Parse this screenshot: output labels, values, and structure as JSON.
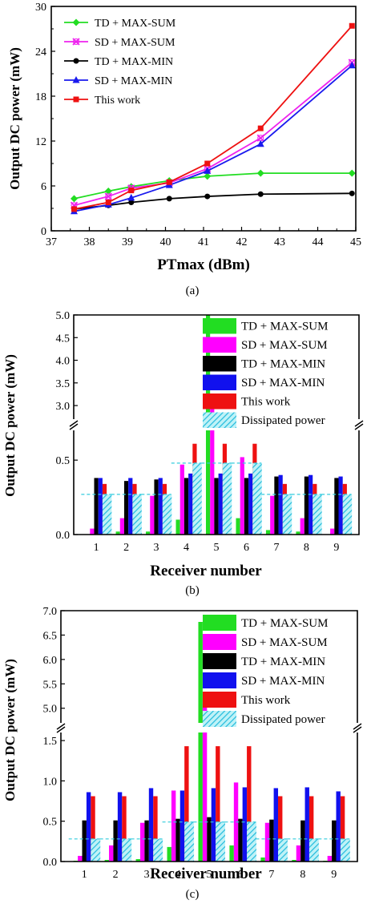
{
  "chart_data": [
    {
      "type": "line",
      "caption": "(a)",
      "xlabel": "PTmax (dBm)",
      "ylabel": "Output DC power (mW)",
      "xlim": [
        37,
        45
      ],
      "ylim": [
        0,
        30
      ],
      "xticks": [
        "37",
        "38",
        "39",
        "40",
        "41",
        "42",
        "43",
        "44",
        "45"
      ],
      "yticks": [
        "0",
        "6",
        "12",
        "18",
        "24",
        "30"
      ],
      "legend_position": "top-left",
      "series": [
        {
          "name": "TD + MAX-SUM",
          "color": "#22dd22",
          "marker": "diamond",
          "x": [
            37.6,
            38.5,
            39.1,
            40.1,
            41.1,
            42.5,
            44.9
          ],
          "y": [
            4.3,
            5.3,
            5.9,
            6.7,
            7.3,
            7.7,
            7.7
          ]
        },
        {
          "name": "SD + MAX-SUM",
          "color": "#ee22ee",
          "marker": "cross",
          "x": [
            37.6,
            38.5,
            39.1,
            40.1,
            41.1,
            42.5,
            44.9
          ],
          "y": [
            3.4,
            4.6,
            5.7,
            6.4,
            8.3,
            12.4,
            22.5
          ]
        },
        {
          "name": "TD + MAX-MIN",
          "color": "#000000",
          "marker": "circle",
          "x": [
            37.6,
            38.5,
            39.1,
            40.1,
            41.1,
            42.5,
            44.9
          ],
          "y": [
            2.9,
            3.4,
            3.8,
            4.3,
            4.6,
            4.9,
            5.0
          ]
        },
        {
          "name": "SD + MAX-MIN",
          "color": "#1a1aee",
          "marker": "triangle",
          "x": [
            37.6,
            38.5,
            39.1,
            40.1,
            41.1,
            42.5,
            44.9
          ],
          "y": [
            2.6,
            3.5,
            4.4,
            6.1,
            8.0,
            11.6,
            22.1
          ]
        },
        {
          "name": "This work",
          "color": "#ee1111",
          "marker": "square",
          "x": [
            37.6,
            38.5,
            39.1,
            40.1,
            41.1,
            42.5,
            44.9
          ],
          "y": [
            2.9,
            3.8,
            5.4,
            6.5,
            9.0,
            13.7,
            27.4
          ]
        }
      ]
    },
    {
      "type": "bar",
      "caption": "(b)",
      "xlabel": "Receiver number",
      "ylabel": "Output DC power (mW)",
      "categories": [
        "1",
        "2",
        "3",
        "4",
        "5",
        "6",
        "7",
        "8",
        "9"
      ],
      "broken_axis": {
        "lower": [
          0,
          0.7
        ],
        "upper": [
          2.7,
          5.0
        ]
      },
      "yticks_lower": [
        "0.0",
        "0.5"
      ],
      "yticks_upper": [
        "3.0",
        "3.5",
        "4.0",
        "4.5",
        "5.0"
      ],
      "legend_position": "top-right",
      "series": [
        {
          "name": "TD + MAX-SUM",
          "color": "#22dd22",
          "values": [
            0.0,
            0.02,
            0.02,
            0.1,
            5.0,
            0.11,
            0.03,
            0.02,
            0.0
          ]
        },
        {
          "name": "SD + MAX-SUM",
          "color": "#ff00ff",
          "values": [
            0.04,
            0.11,
            0.26,
            0.47,
            3.02,
            0.52,
            0.26,
            0.11,
            0.04
          ]
        },
        {
          "name": "TD + MAX-MIN",
          "color": "#000000",
          "values": [
            0.38,
            0.36,
            0.37,
            0.38,
            0.38,
            0.38,
            0.39,
            0.39,
            0.38
          ]
        },
        {
          "name": "SD + MAX-MIN",
          "color": "#1111ee",
          "values": [
            0.38,
            0.38,
            0.38,
            0.41,
            0.41,
            0.41,
            0.4,
            0.4,
            0.39
          ]
        },
        {
          "name": "This work",
          "color": "#ee1111",
          "values": [
            0.34,
            0.34,
            0.34,
            0.61,
            0.61,
            0.61,
            0.34,
            0.34,
            0.34
          ]
        },
        {
          "name": "Dissipated power",
          "color": "#33ccdd",
          "hatched": true,
          "values": [
            0.27,
            0.27,
            0.27,
            0.48,
            0.48,
            0.48,
            0.27,
            0.27,
            0.27
          ]
        }
      ]
    },
    {
      "type": "bar",
      "caption": "(c)",
      "xlabel": "Receiver number",
      "ylabel": "Output DC power (mW)",
      "categories": [
        "1",
        "2",
        "3",
        "4",
        "5",
        "6",
        "7",
        "8",
        "9"
      ],
      "broken_axis": {
        "lower": [
          0,
          1.6
        ],
        "upper": [
          4.7,
          7.0
        ]
      },
      "yticks_lower": [
        "0.0",
        "0.5",
        "1.0",
        "1.5"
      ],
      "yticks_upper": [
        "5.0",
        "5.5",
        "6.0",
        "6.5",
        "7.0"
      ],
      "legend_position": "top-right",
      "series": [
        {
          "name": "TD + MAX-SUM",
          "color": "#22dd22",
          "values": [
            0.01,
            0.02,
            0.03,
            0.18,
            6.77,
            0.2,
            0.05,
            0.02,
            0.01
          ]
        },
        {
          "name": "SD + MAX-SUM",
          "color": "#ff00ff",
          "values": [
            0.07,
            0.2,
            0.48,
            0.88,
            5.13,
            0.98,
            0.48,
            0.2,
            0.07
          ]
        },
        {
          "name": "TD + MAX-MIN",
          "color": "#000000",
          "values": [
            0.51,
            0.51,
            0.51,
            0.53,
            0.55,
            0.53,
            0.52,
            0.51,
            0.51
          ]
        },
        {
          "name": "SD + MAX-MIN",
          "color": "#1111ee",
          "values": [
            0.86,
            0.86,
            0.91,
            0.88,
            0.91,
            0.92,
            0.91,
            0.92,
            0.87
          ]
        },
        {
          "name": "This work",
          "color": "#ee1111",
          "values": [
            0.81,
            0.81,
            0.81,
            1.43,
            1.43,
            1.43,
            0.81,
            0.81,
            0.81
          ]
        },
        {
          "name": "Dissipated power",
          "color": "#33ccdd",
          "hatched": true,
          "values": [
            0.28,
            0.28,
            0.28,
            0.49,
            0.49,
            0.49,
            0.28,
            0.28,
            0.28
          ]
        }
      ]
    }
  ]
}
